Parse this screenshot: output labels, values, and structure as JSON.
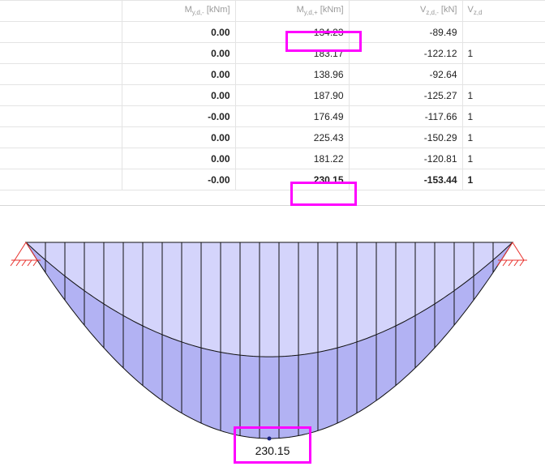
{
  "table": {
    "headers": {
      "my_minus": {
        "main": "M",
        "sub": "y,d,-",
        "unit": " [kNm]"
      },
      "my_plus": {
        "main": "M",
        "sub": "y,d,+",
        "unit": " [kNm]"
      },
      "vz_minus": {
        "main": "V",
        "sub": "z,d,-",
        "unit": " [kN]"
      },
      "vz_plus": {
        "main": "V",
        "sub": "z,d",
        "unit": ""
      }
    },
    "rows": [
      {
        "my_minus": "0.00",
        "my_plus": "134.23",
        "vz_minus": "-89.49",
        "vz_plus": ""
      },
      {
        "my_minus": "0.00",
        "my_plus": "183.17",
        "vz_minus": "-122.12",
        "vz_plus": "1"
      },
      {
        "my_minus": "0.00",
        "my_plus": "138.96",
        "vz_minus": "-92.64",
        "vz_plus": ""
      },
      {
        "my_minus": "0.00",
        "my_plus": "187.90",
        "vz_minus": "-125.27",
        "vz_plus": "1"
      },
      {
        "my_minus": "-0.00",
        "my_plus": "176.49",
        "vz_minus": "-117.66",
        "vz_plus": "1"
      },
      {
        "my_minus": "0.00",
        "my_plus": "225.43",
        "vz_minus": "-150.29",
        "vz_plus": "1"
      },
      {
        "my_minus": "0.00",
        "my_plus": "181.22",
        "vz_minus": "-120.81",
        "vz_plus": "1"
      },
      {
        "my_minus": "-0.00",
        "my_plus": "230.15",
        "vz_minus": "-153.44",
        "vz_plus": "1"
      }
    ]
  },
  "diagram": {
    "max_moment_label": "230.15",
    "max_moment": 230.15,
    "inner_moment": 134.23,
    "colors": {
      "inner_fill": "#d4d4fb",
      "outer_fill": "#b2b2f3",
      "support": "#e8312c",
      "highlight": "#ff00ff"
    }
  }
}
